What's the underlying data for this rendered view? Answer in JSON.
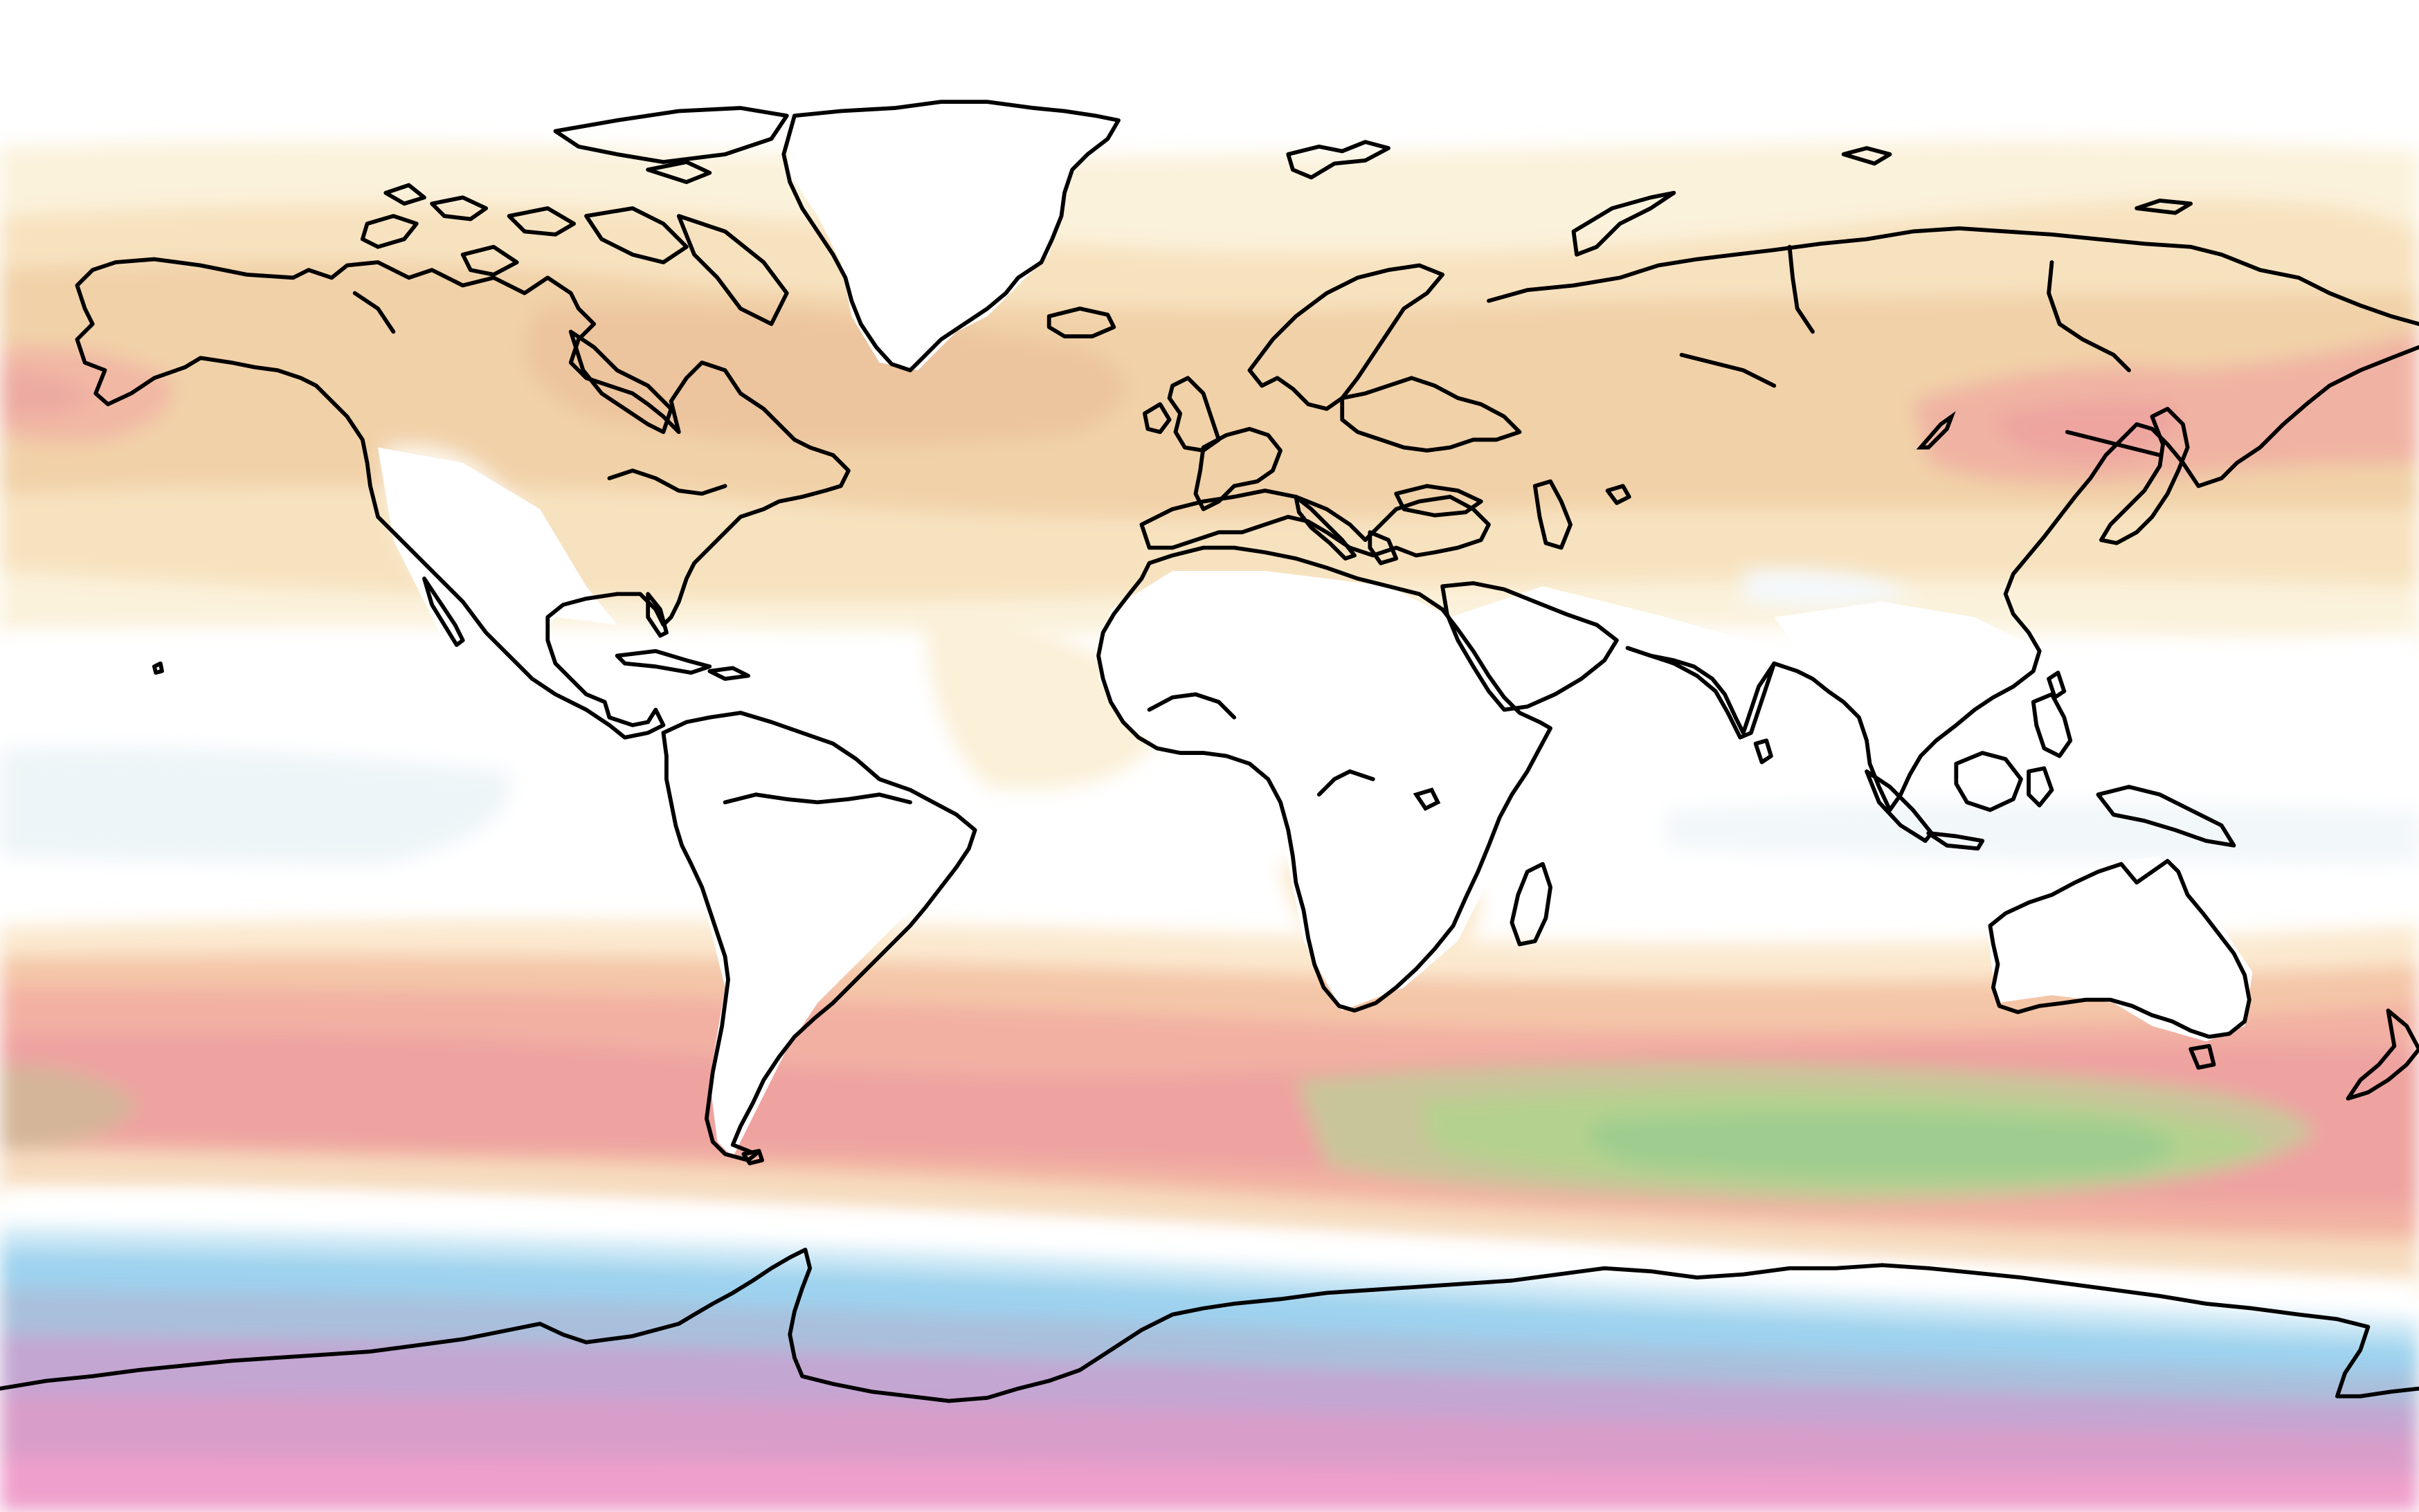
{
  "map": {
    "projection": "equirectangular",
    "background_color": "#ffffff",
    "coastline_color": "#000000",
    "overlay": {
      "kind": "filled-contour",
      "palette": [
        "#e07ab8",
        "#b88ad6",
        "#7fb8e8",
        "#9fd6f0",
        "#ffffff",
        "#f8efd6",
        "#f3dcb2",
        "#efc9a4",
        "#f2a7a0",
        "#f28d95",
        "#b8d08a",
        "#93c98a"
      ],
      "land_masked": true
    }
  }
}
